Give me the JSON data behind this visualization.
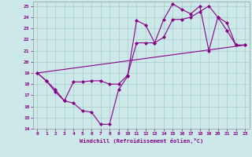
{
  "xlabel": "Windchill (Refroidissement éolien,°C)",
  "bg_color": "#cce8e8",
  "line_color": "#880088",
  "grid_color": "#aacccc",
  "xlim": [
    -0.5,
    23.5
  ],
  "ylim": [
    14,
    25.4
  ],
  "yticks": [
    14,
    15,
    16,
    17,
    18,
    19,
    20,
    21,
    22,
    23,
    24,
    25
  ],
  "xticks": [
    0,
    1,
    2,
    3,
    4,
    5,
    6,
    7,
    8,
    9,
    10,
    11,
    12,
    13,
    14,
    15,
    16,
    17,
    18,
    19,
    20,
    21,
    22,
    23
  ],
  "line1_x": [
    0,
    1,
    2,
    3,
    4,
    5,
    6,
    7,
    8,
    9,
    10,
    11,
    12,
    13,
    14,
    15,
    16,
    17,
    18,
    19,
    20,
    21,
    22,
    23
  ],
  "line1_y": [
    19.0,
    18.3,
    17.3,
    16.5,
    16.3,
    15.6,
    15.5,
    14.4,
    14.4,
    17.5,
    18.7,
    23.7,
    23.3,
    21.7,
    23.8,
    25.2,
    24.7,
    24.3,
    25.0,
    21.0,
    24.0,
    23.5,
    21.5,
    21.5
  ],
  "line2_x": [
    0,
    1,
    2,
    3,
    4,
    5,
    6,
    7,
    8,
    9,
    10,
    11,
    12,
    13,
    14,
    15,
    16,
    17,
    18,
    19,
    20,
    21,
    22,
    23
  ],
  "line2_y": [
    19.0,
    18.3,
    17.5,
    16.5,
    18.2,
    18.2,
    18.3,
    18.3,
    18.0,
    18.0,
    18.8,
    21.7,
    21.7,
    21.7,
    22.2,
    23.8,
    23.8,
    24.0,
    24.5,
    25.0,
    24.0,
    22.8,
    21.5,
    21.5
  ],
  "line3_x": [
    0,
    23
  ],
  "line3_y": [
    19.0,
    21.5
  ]
}
